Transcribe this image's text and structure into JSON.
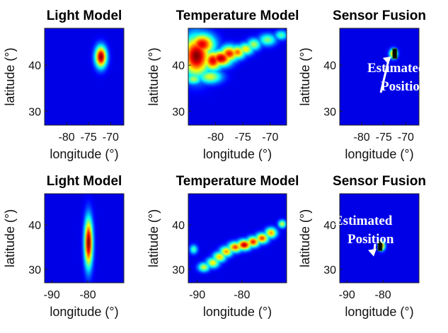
{
  "chart_data": [
    {
      "type": "heatmap",
      "title": "Light Model",
      "xlabel": "longitude (°)",
      "ylabel": "latitude (°)",
      "xlim": [
        -85,
        -67
      ],
      "ylim": [
        27,
        48
      ],
      "xticks": [
        -80,
        -75,
        -70
      ],
      "yticks": [
        30,
        40
      ],
      "blobs": [
        {
          "x": -72.2,
          "y": 41.8,
          "sx": 0.9,
          "sy": 1.6,
          "a": 1.0
        }
      ]
    },
    {
      "type": "heatmap",
      "title": "Temperature Model",
      "xlabel": "longitude (°)",
      "ylabel": "latitude (°)",
      "xlim": [
        -85,
        -67
      ],
      "ylim": [
        27,
        48
      ],
      "xticks": [
        -80,
        -75,
        -70
      ],
      "yticks": [
        30,
        40
      ],
      "blobs": [
        {
          "x": -83.5,
          "y": 42.0,
          "sx": 1.8,
          "sy": 3.0,
          "a": 1.0
        },
        {
          "x": -82.5,
          "y": 44.5,
          "sx": 1.6,
          "sy": 1.6,
          "a": 0.9
        },
        {
          "x": -80.5,
          "y": 41.0,
          "sx": 1.2,
          "sy": 1.5,
          "a": 0.9
        },
        {
          "x": -79.0,
          "y": 41.5,
          "sx": 1.4,
          "sy": 1.2,
          "a": 0.95
        },
        {
          "x": -77.5,
          "y": 42.5,
          "sx": 1.2,
          "sy": 1.2,
          "a": 0.85
        },
        {
          "x": -76.0,
          "y": 42.8,
          "sx": 1.0,
          "sy": 1.0,
          "a": 0.75
        },
        {
          "x": -74.5,
          "y": 43.5,
          "sx": 1.0,
          "sy": 0.9,
          "a": 0.6
        },
        {
          "x": -73.0,
          "y": 44.5,
          "sx": 0.9,
          "sy": 0.9,
          "a": 0.5
        },
        {
          "x": -70.5,
          "y": 45.5,
          "sx": 1.1,
          "sy": 0.9,
          "a": 0.45
        },
        {
          "x": -68.0,
          "y": 46.5,
          "sx": 0.8,
          "sy": 0.7,
          "a": 0.4
        },
        {
          "x": -81.0,
          "y": 37.5,
          "sx": 1.5,
          "sy": 1.0,
          "a": 0.55
        },
        {
          "x": -84.0,
          "y": 37.0,
          "sx": 1.0,
          "sy": 0.8,
          "a": 0.5
        }
      ]
    },
    {
      "type": "heatmap",
      "title": "Sensor Fusion",
      "xlabel": "longitude (°)",
      "ylabel": "latitude (°)",
      "xlim": [
        -85,
        -67
      ],
      "ylim": [
        27,
        48
      ],
      "xticks": [
        -80,
        -75,
        -70
      ],
      "yticks": [
        30,
        40
      ],
      "blobs": [
        {
          "x": -72.8,
          "y": 42.5,
          "sx": 0.6,
          "sy": 0.7,
          "a": 0.8
        }
      ],
      "marker": {
        "x": -72.5,
        "y": 42.5
      },
      "annotation": [
        "Estimated",
        "Position"
      ]
    },
    {
      "type": "heatmap",
      "title": "Light Model",
      "xlabel": "longitude (°)",
      "ylabel": "latitude (°)",
      "xlim": [
        -92,
        -70
      ],
      "ylim": [
        27,
        47
      ],
      "xticks": [
        -90,
        -80
      ],
      "yticks": [
        30,
        40
      ],
      "blobs": [
        {
          "x": -79.8,
          "y": 36.0,
          "sx": 0.8,
          "sy": 3.8,
          "a": 1.0
        }
      ]
    },
    {
      "type": "heatmap",
      "title": "Temperature Model",
      "xlabel": "longitude (°)",
      "ylabel": "latitude (°)",
      "xlim": [
        -92,
        -70
      ],
      "ylim": [
        27,
        47
      ],
      "xticks": [
        -90,
        -80
      ],
      "yticks": [
        30,
        40
      ],
      "blobs": [
        {
          "x": -88.5,
          "y": 30.5,
          "sx": 0.9,
          "sy": 0.7,
          "a": 0.55
        },
        {
          "x": -86.5,
          "y": 31.5,
          "sx": 1.0,
          "sy": 0.8,
          "a": 0.6
        },
        {
          "x": -85.0,
          "y": 32.8,
          "sx": 1.0,
          "sy": 0.8,
          "a": 0.65
        },
        {
          "x": -83.5,
          "y": 34.0,
          "sx": 1.0,
          "sy": 0.8,
          "a": 0.7
        },
        {
          "x": -81.5,
          "y": 35.0,
          "sx": 1.1,
          "sy": 0.8,
          "a": 0.8
        },
        {
          "x": -79.5,
          "y": 35.5,
          "sx": 1.1,
          "sy": 0.8,
          "a": 0.95
        },
        {
          "x": -77.5,
          "y": 36.2,
          "sx": 1.0,
          "sy": 0.8,
          "a": 0.85
        },
        {
          "x": -75.5,
          "y": 37.0,
          "sx": 1.0,
          "sy": 0.8,
          "a": 0.8
        },
        {
          "x": -73.5,
          "y": 38.2,
          "sx": 0.9,
          "sy": 0.8,
          "a": 0.7
        },
        {
          "x": -71.0,
          "y": 40.2,
          "sx": 0.6,
          "sy": 0.6,
          "a": 0.55
        },
        {
          "x": -90.8,
          "y": 34.5,
          "sx": 0.6,
          "sy": 0.7,
          "a": 0.4
        }
      ]
    },
    {
      "type": "heatmap",
      "title": "Sensor Fusion",
      "xlabel": "longitude (°)",
      "ylabel": "latitude (°)",
      "xlim": [
        -92,
        -70
      ],
      "ylim": [
        27,
        47
      ],
      "xticks": [
        -90,
        -80
      ],
      "yticks": [
        30,
        40
      ],
      "blobs": [
        {
          "x": -80.3,
          "y": 35.3,
          "sx": 0.6,
          "sy": 0.7,
          "a": 0.8
        }
      ],
      "marker": {
        "x": -80.8,
        "y": 35.3
      },
      "annotation": [
        "Estimated",
        "Position"
      ]
    }
  ]
}
